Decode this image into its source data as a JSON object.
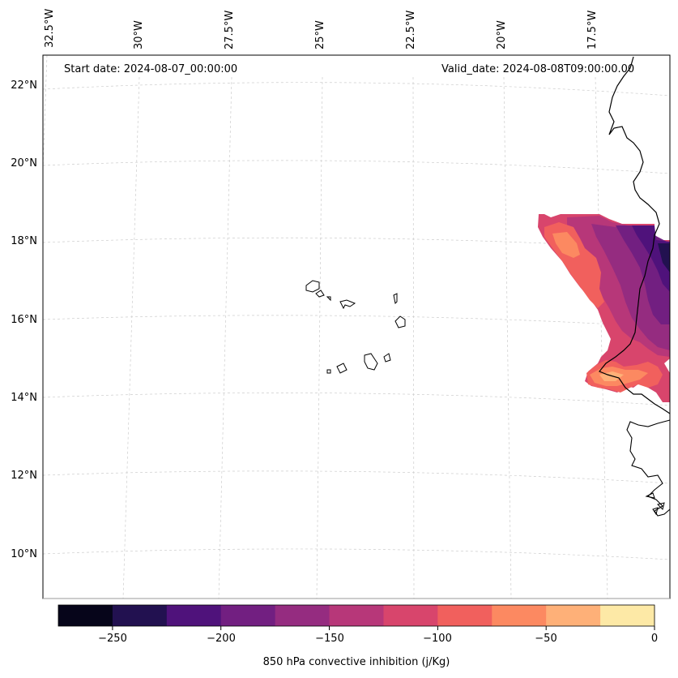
{
  "map": {
    "start_date_text": "Start date: 2024-08-07_00:00:00",
    "valid_date_text": "Valid_date: 2024-08-08T09:00:00.00",
    "longitude_labels": [
      "32.5°W",
      "30°W",
      "27.5°W",
      "25°W",
      "22.5°W",
      "20°W",
      "17.5°W"
    ],
    "latitude_labels": [
      "22°N",
      "20°N",
      "18°N",
      "16°N",
      "14°N",
      "12°N",
      "10°N"
    ]
  },
  "colorbar": {
    "label": "850 hPa convective inhibition (j/Kg)",
    "tick_labels": [
      "−250",
      "−200",
      "−150",
      "−100",
      "−50",
      "0"
    ],
    "levels": [
      -275,
      -250,
      -225,
      -200,
      -175,
      -150,
      -125,
      -100,
      -75,
      -50,
      -25,
      0
    ],
    "colors": [
      "#06051a",
      "#221150",
      "#4f127b",
      "#721f81",
      "#952c80",
      "#b73779",
      "#d8456c",
      "#f1605d",
      "#fc8961",
      "#feb078",
      "#fde9a6"
    ]
  }
}
